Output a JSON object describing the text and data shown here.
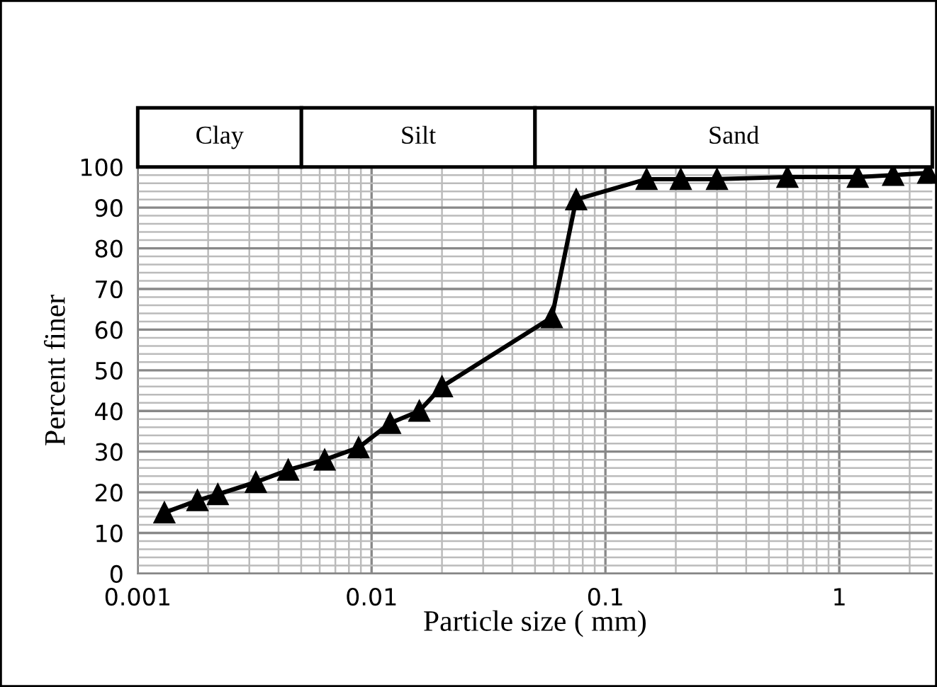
{
  "chart_data": [
    {
      "type": "line",
      "xlabel": "Particle size ( mm)",
      "ylabel": "Percent finer",
      "x": [
        0.0013,
        0.0018,
        0.0022,
        0.0032,
        0.0044,
        0.0063,
        0.0088,
        0.012,
        0.016,
        0.02,
        0.059,
        0.075,
        0.15,
        0.21,
        0.3,
        0.6,
        1.2,
        1.7,
        2.4
      ],
      "series": [
        {
          "color": "#000000",
          "values": [
            15,
            18,
            19.5,
            22.5,
            25.5,
            28,
            31,
            37,
            40,
            46,
            63,
            92,
            97,
            97,
            97,
            97.5,
            97.5,
            98,
            98.5
          ]
        }
      ],
      "marker": "triangle",
      "line_style": "solid",
      "log": "x",
      "grid": true,
      "xlim": [
        0.001,
        2.5
      ],
      "xticks": [
        0.001,
        0.01,
        0.1,
        1
      ],
      "ylim": [
        0,
        100
      ],
      "yticks": [
        0,
        10,
        20,
        30,
        40,
        50,
        60,
        70,
        80,
        90,
        100
      ]
    },
    {
      "type": "other",
      "annotations": [
        "Clay",
        "Silt",
        "Sand"
      ]
    }
  ]
}
